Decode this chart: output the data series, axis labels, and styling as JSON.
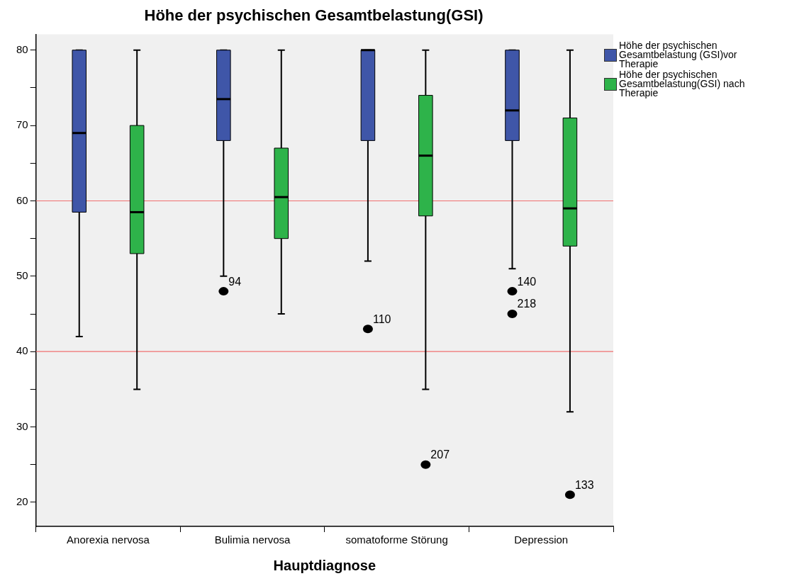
{
  "chart_data": {
    "type": "box",
    "title": "Höhe der psychischen Gesamtbelastung(GSI)",
    "xlabel": "Hauptdiagnose",
    "categories": [
      "Anorexia nervosa",
      "Bulimia nervosa",
      "somatoforme Störung",
      "Depression"
    ],
    "series": [
      {
        "name": "Höhe der psychischen Gesamtbelastung (GSI)vor Therapie",
        "color": "#3f56a8",
        "boxes": [
          {
            "low": 42,
            "q1": 58.5,
            "median": 69,
            "q3": 80,
            "high": 80
          },
          {
            "low": 50,
            "q1": 68,
            "median": 73.5,
            "q3": 80,
            "high": 80,
            "outliers": [
              48
            ]
          },
          {
            "low": 52,
            "q1": 68,
            "median": 80,
            "q3": 80,
            "high": 80,
            "outliers": [
              43
            ]
          },
          {
            "low": 51,
            "q1": 68,
            "median": 72,
            "q3": 80,
            "high": 80,
            "outliers": [
              48,
              45
            ]
          }
        ]
      },
      {
        "name": "Höhe der psychischen Gesamtbelastung(GSI) nach Therapie",
        "color": "#2eb34a",
        "boxes": [
          {
            "low": 35,
            "q1": 53,
            "median": 58.5,
            "q3": 70,
            "high": 80
          },
          {
            "low": 45,
            "q1": 55,
            "median": 60.5,
            "q3": 67,
            "high": 80
          },
          {
            "low": 35,
            "q1": 58,
            "median": 66,
            "q3": 74,
            "high": 80,
            "outliers": [
              25
            ]
          },
          {
            "low": 32,
            "q1": 54,
            "median": 59,
            "q3": 71,
            "high": 80,
            "outliers": [
              21
            ]
          }
        ]
      }
    ],
    "ylim": [
      16.8,
      82.1
    ],
    "yticks": [
      20,
      {
        "value": 25,
        "label": null
      },
      30,
      {
        "value": 35,
        "label": null
      },
      40,
      {
        "value": 45,
        "label": null
      },
      50,
      {
        "value": 55,
        "label": null
      },
      60,
      {
        "value": 65,
        "label": null
      },
      70,
      {
        "value": 75,
        "label": null
      },
      80
    ],
    "ref_lines": [
      {
        "axis": "y",
        "value": 60,
        "color": "#f07070"
      },
      {
        "axis": "y",
        "value": 40,
        "color": "#f07070"
      }
    ],
    "annotations": [
      "94",
      "110",
      "140",
      "218",
      "207",
      "133"
    ],
    "grid": false,
    "legend": "top right"
  }
}
